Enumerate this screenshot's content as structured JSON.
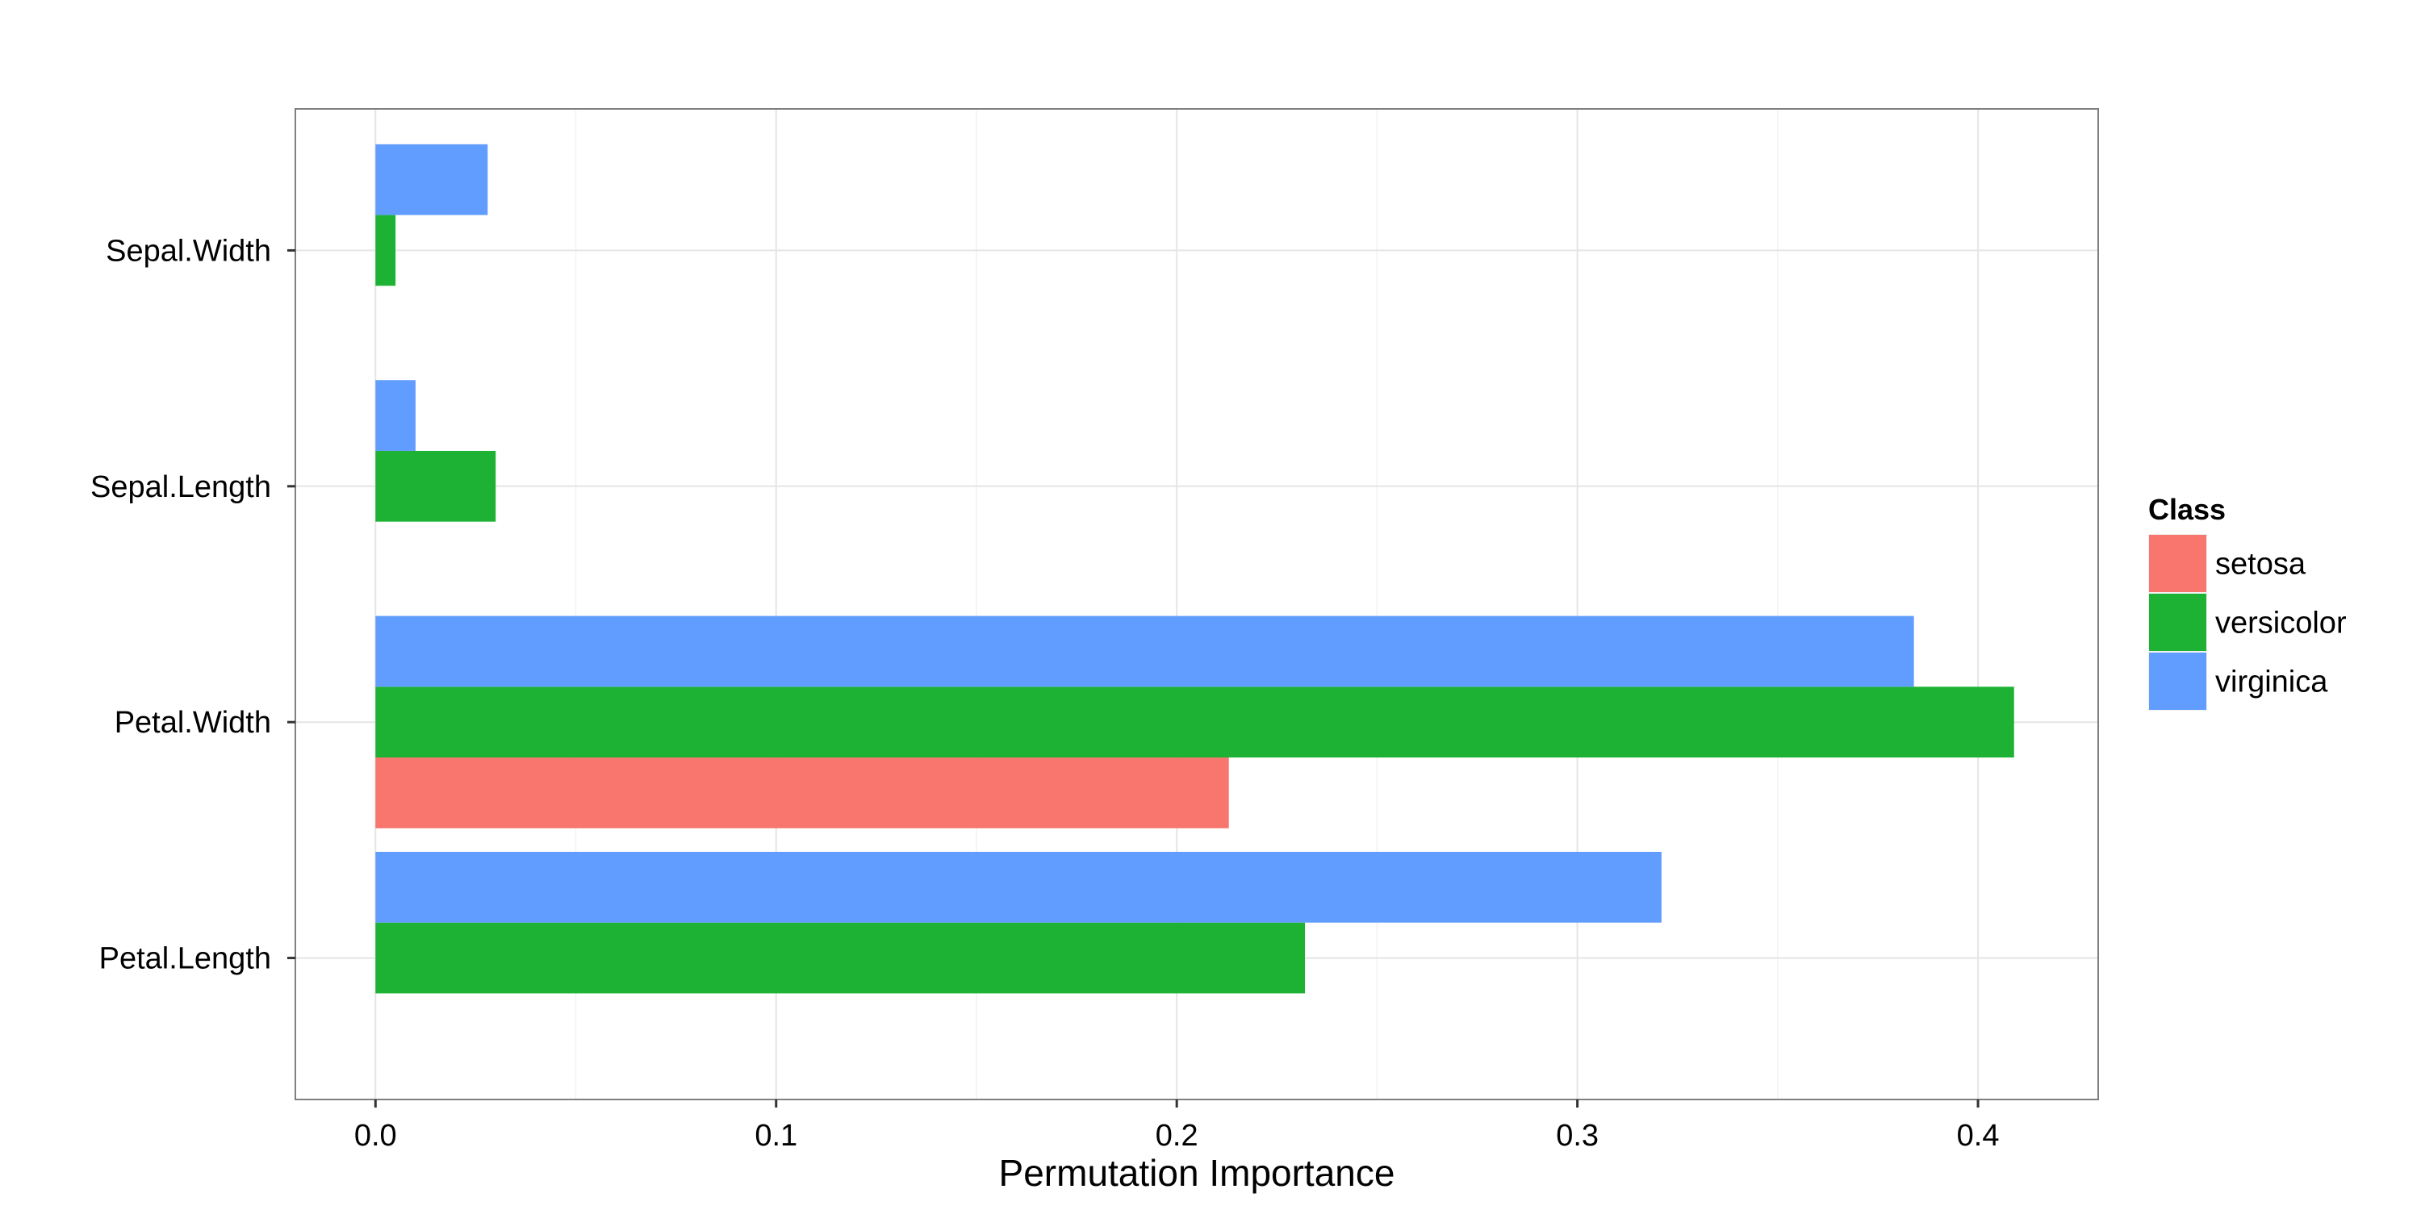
{
  "chart_data": {
    "type": "bar",
    "orientation": "horizontal",
    "grouping": "dodged",
    "categories": [
      "Petal.Length",
      "Petal.Width",
      "Sepal.Length",
      "Sepal.Width"
    ],
    "series": [
      {
        "name": "setosa",
        "color": "#F8766D",
        "values": [
          0,
          0.213,
          0,
          0
        ]
      },
      {
        "name": "versicolor",
        "color": "#1DB233",
        "values": [
          0.232,
          0.409,
          0.03,
          0.005
        ]
      },
      {
        "name": "virginica",
        "color": "#619CFF",
        "values": [
          0.321,
          0.384,
          0.01,
          0.028
        ]
      }
    ],
    "xlabel": "Permutation Importance",
    "ylabel": "",
    "xlim": [
      -0.02,
      0.43
    ],
    "x_ticks": [
      "0.0",
      "0.1",
      "0.2",
      "0.3",
      "0.4"
    ],
    "x_tick_values": [
      0,
      0.1,
      0.2,
      0.3,
      0.4
    ],
    "grid": true,
    "legend": {
      "title": "Class",
      "placement": "right"
    }
  }
}
